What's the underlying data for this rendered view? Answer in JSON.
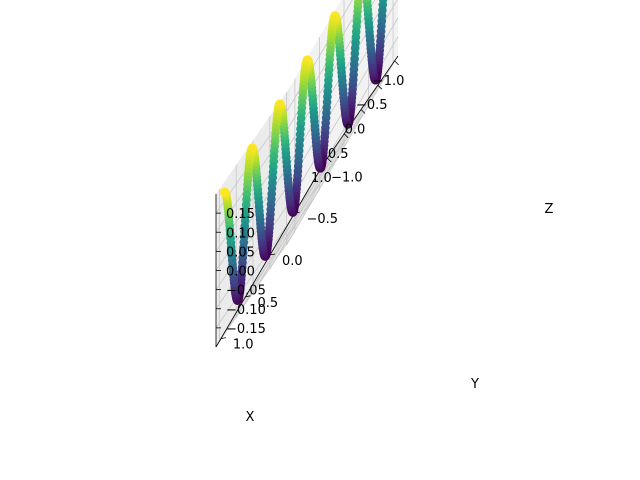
{
  "chart_data": {
    "type": "scatter",
    "projection": "3d",
    "colormap": "viridis",
    "color_by": "z",
    "xlabel": "X",
    "ylabel": "Y",
    "zlabel": "Z",
    "xlim": [
      -1.1,
      1.1
    ],
    "ylim": [
      -1.1,
      1.1
    ],
    "zlim": [
      -0.2,
      0.2
    ],
    "x_ticks": [
      {
        "value": -1.0,
        "label": "−1.0"
      },
      {
        "value": -0.5,
        "label": "−0.5"
      },
      {
        "value": 0.0,
        "label": "0.0"
      },
      {
        "value": 0.5,
        "label": "0.5"
      },
      {
        "value": 1.0,
        "label": "1.0"
      }
    ],
    "y_ticks": [
      {
        "value": -1.0,
        "label": "−1.0"
      },
      {
        "value": -0.5,
        "label": "−0.5"
      },
      {
        "value": 0.0,
        "label": "0.0"
      },
      {
        "value": 0.5,
        "label": "0.5"
      },
      {
        "value": 1.0,
        "label": "1.0"
      }
    ],
    "z_ticks": [
      {
        "value": -0.15,
        "label": "−0.15"
      },
      {
        "value": -0.1,
        "label": "−0.10"
      },
      {
        "value": -0.05,
        "label": "−0.05"
      },
      {
        "value": 0.0,
        "label": "0.00"
      },
      {
        "value": 0.05,
        "label": "0.05"
      },
      {
        "value": 0.1,
        "label": "0.10"
      },
      {
        "value": 0.15,
        "label": "0.15"
      }
    ],
    "grid": true,
    "series": [
      {
        "x_range": [
          -1.0,
          1.0
        ],
        "y_range": [
          -1.0,
          1.0
        ],
        "z_amplitude": 0.17,
        "z_cycles": 6,
        "point_count": 500
      }
    ]
  }
}
